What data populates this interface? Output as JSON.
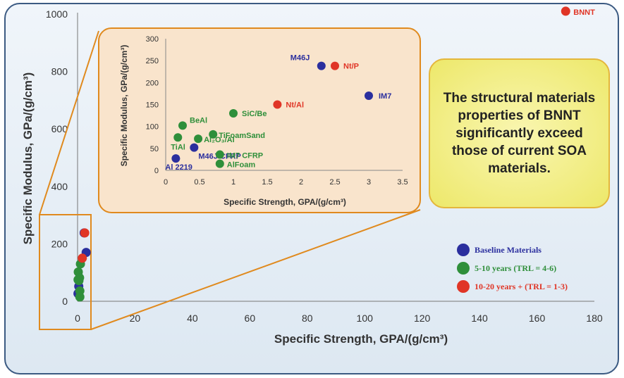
{
  "chart_data": {
    "type": "scatter",
    "xlabel": "Specific Strength, GPA/(g/cm³)",
    "ylabel": "Specific Modulus, GPa/(g/cm³)",
    "xlim": [
      0,
      180
    ],
    "ylim": [
      0,
      1000
    ],
    "xticks": [
      0,
      20,
      40,
      60,
      80,
      100,
      120,
      140,
      160,
      180
    ],
    "yticks": [
      0,
      200,
      400,
      600,
      800,
      1000
    ],
    "grid": false,
    "legend_placement": "bottom-right",
    "series": [
      {
        "name": "Baseline Materials",
        "color": "#2b2f9e",
        "points": [
          {
            "label": "Al 2219",
            "x": 0.15,
            "y": 27
          },
          {
            "label": "M46J CFRP",
            "x": 0.42,
            "y": 52
          },
          {
            "label": "M46J",
            "x": 2.3,
            "y": 238
          },
          {
            "label": "IM7",
            "x": 3.0,
            "y": 170
          }
        ]
      },
      {
        "name": "5-10 years  (TRL = 4-6)",
        "color": "#2f8f3a",
        "points": [
          {
            "label": "TiAl",
            "x": 0.18,
            "y": 75
          },
          {
            "label": "BeAl",
            "x": 0.25,
            "y": 102
          },
          {
            "label": "Al₂O₃/Al",
            "x": 0.48,
            "y": 72
          },
          {
            "label": "TiFoamSand",
            "x": 0.7,
            "y": 82
          },
          {
            "label": "SiC/Be",
            "x": 1.0,
            "y": 130
          },
          {
            "label": "IM7 CFRP",
            "x": 0.8,
            "y": 36
          },
          {
            "label": "AlFoam",
            "x": 0.8,
            "y": 15
          }
        ]
      },
      {
        "name": "10-20 years +  (TRL = 1-3)",
        "color": "#e03526",
        "points": [
          {
            "label": "Nt/Al",
            "x": 1.65,
            "y": 150
          },
          {
            "label": "Nt/P",
            "x": 2.5,
            "y": 238
          },
          {
            "label": "BNNT",
            "x": 170,
            "y": 1010
          }
        ]
      }
    ],
    "inset": {
      "xlabel": "Specific Strength, GPA/(g/cm³)",
      "ylabel": "Specific Modulus, GPa/(g/cm³)",
      "xlim": [
        0,
        3.5
      ],
      "ylim": [
        0,
        300
      ],
      "xticks": [
        0,
        0.5,
        1,
        1.5,
        2,
        2.5,
        3,
        3.5
      ],
      "xtick_labels": [
        "0",
        "0.5",
        "1",
        "1.5",
        "2",
        "2.5",
        "3",
        "3.5"
      ],
      "yticks": [
        0,
        50,
        100,
        150,
        200,
        250,
        300
      ]
    }
  },
  "callout": {
    "text": "The structural materials properties of BNNT significantly exceed those of current SOA materials."
  }
}
